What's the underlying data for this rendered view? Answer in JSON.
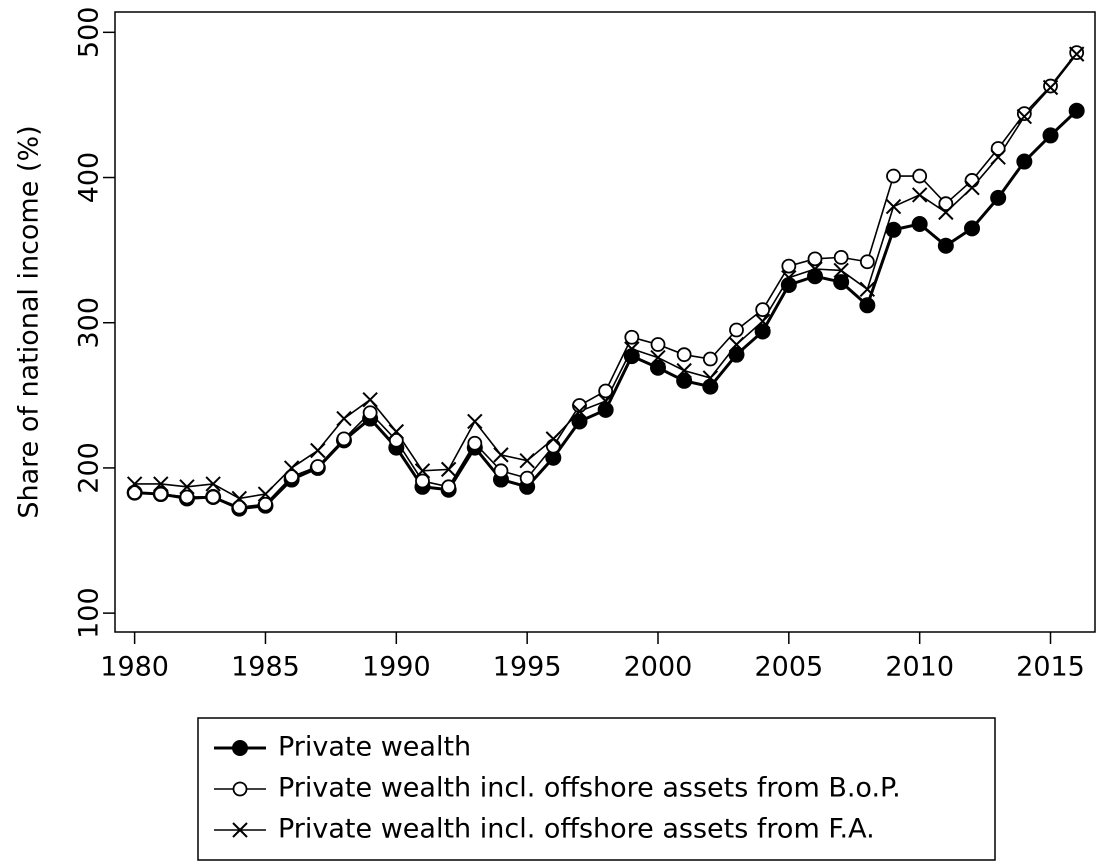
{
  "chart_data": {
    "type": "line",
    "ylabel": "Share of national income (%)",
    "x": [
      1980,
      1981,
      1982,
      1983,
      1984,
      1985,
      1986,
      1987,
      1988,
      1989,
      1990,
      1991,
      1992,
      1993,
      1994,
      1995,
      1996,
      1997,
      1998,
      1999,
      2000,
      2001,
      2002,
      2003,
      2004,
      2005,
      2006,
      2007,
      2008,
      2009,
      2010,
      2011,
      2012,
      2013,
      2014,
      2015,
      2016
    ],
    "series": [
      {
        "name": "Private wealth",
        "color": "#000000",
        "marker": "filled-circle",
        "values": [
          183,
          182,
          179,
          180,
          172,
          174,
          192,
          200,
          219,
          234,
          214,
          187,
          185,
          214,
          192,
          187,
          207,
          232,
          240,
          277,
          269,
          260,
          256,
          278,
          294,
          326,
          332,
          328,
          312,
          364,
          368,
          353,
          365,
          386,
          411,
          429,
          446
        ]
      },
      {
        "name": "Private wealth incl. offshore assets from B.o.P.",
        "color": "#000000",
        "marker": "open-circle",
        "values": [
          183,
          182,
          180,
          180,
          173,
          175,
          194,
          201,
          220,
          238,
          219,
          191,
          187,
          217,
          198,
          193,
          215,
          243,
          253,
          290,
          285,
          278,
          275,
          295,
          309,
          339,
          344,
          345,
          342,
          401,
          401,
          382,
          398,
          420,
          444,
          463,
          486
        ]
      },
      {
        "name": "Private wealth incl. offshore assets from F.A.",
        "color": "#000000",
        "marker": "cross",
        "values": [
          189,
          189,
          187,
          189,
          179,
          182,
          200,
          212,
          234,
          247,
          225,
          198,
          199,
          232,
          209,
          205,
          220,
          239,
          246,
          282,
          276,
          267,
          262,
          285,
          301,
          331,
          337,
          336,
          323,
          380,
          388,
          376,
          393,
          414,
          442,
          462,
          485
        ]
      }
    ],
    "xlim": [
      1979.25,
      2016.7
    ],
    "xticks": [
      1980,
      1985,
      1990,
      1995,
      2000,
      2005,
      2010,
      2015
    ],
    "ylim": [
      87,
      514
    ],
    "yticks": [
      100,
      200,
      300,
      400,
      500
    ],
    "legend": "bottom"
  }
}
